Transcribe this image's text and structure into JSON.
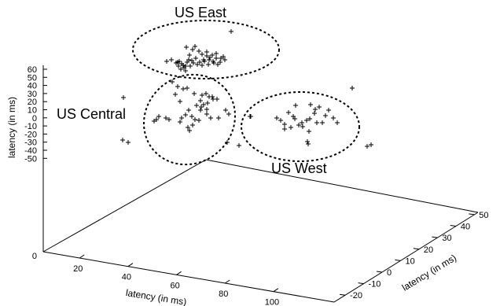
{
  "chart_data": {
    "type": "scatter",
    "dimensions": "3d",
    "axes": {
      "x": {
        "label": "latency (in ms)",
        "ticks": [
          "20",
          "40",
          "60",
          "80",
          "100"
        ]
      },
      "y": {
        "label": "latency (in ms)",
        "ticks": [
          "-20",
          "-10",
          "0",
          "10",
          "20",
          "30",
          "40",
          "50"
        ]
      },
      "z": {
        "label": "latency (in ms)",
        "ticks": [
          "60",
          "50",
          "40",
          "30",
          "20",
          "10",
          "0",
          "-10",
          "-20",
          "-30",
          "-40",
          "-50"
        ],
        "base_tick": "0"
      }
    },
    "clusters": [
      {
        "label": "US East",
        "points_count": 45
      },
      {
        "label": "US Central",
        "points_count": 40
      },
      {
        "label": "US West",
        "points_count": 26
      }
    ],
    "grid": false,
    "marker": "+"
  }
}
